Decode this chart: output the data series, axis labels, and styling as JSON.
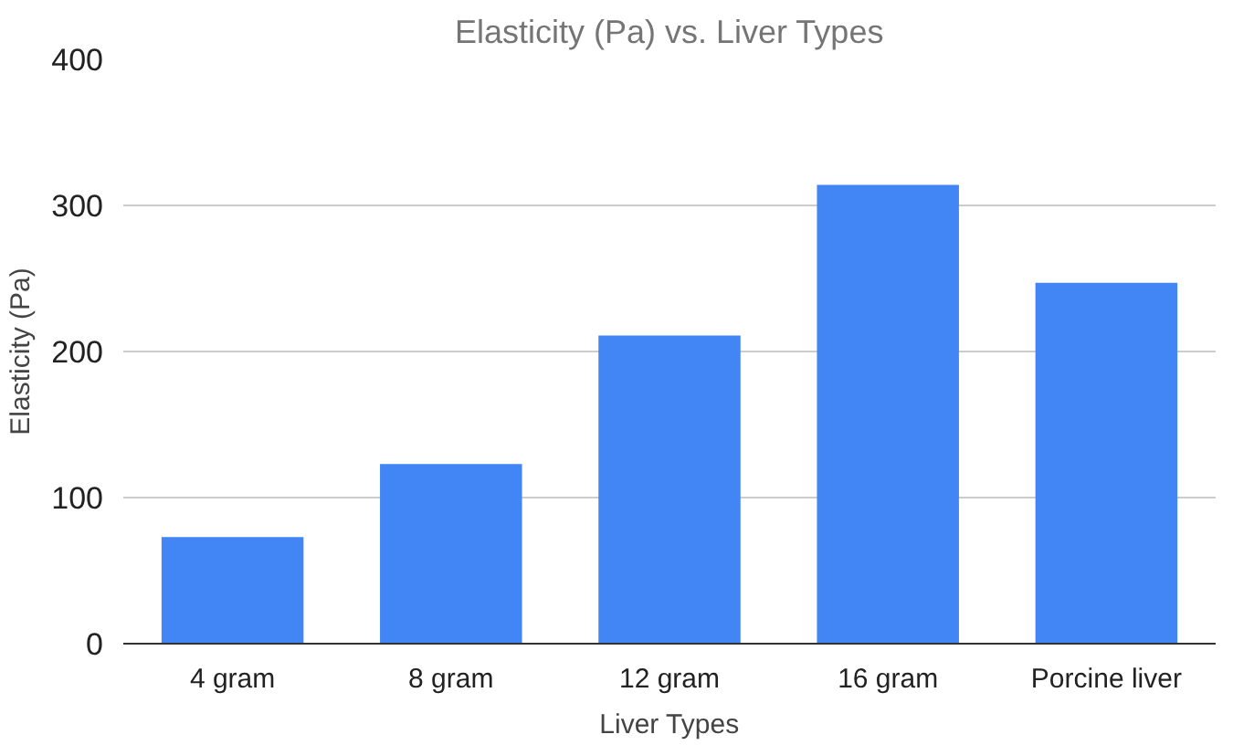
{
  "chart_data": {
    "type": "bar",
    "title": "Elasticity (Pa) vs. Liver Types",
    "xlabel": "Liver Types",
    "ylabel": "Elasticity (Pa)",
    "categories": [
      "4 gram",
      "8 gram",
      "12 gram",
      "16 gram",
      "Porcine liver"
    ],
    "values": [
      73,
      123,
      211,
      314,
      247
    ],
    "color": "#4285f4",
    "ylim": [
      0,
      400
    ],
    "yticks": [
      0,
      100,
      200,
      300,
      400
    ],
    "grid": "y"
  }
}
